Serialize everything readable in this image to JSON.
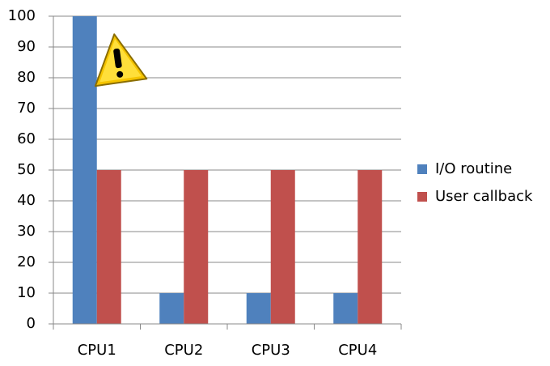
{
  "chart_data": {
    "type": "bar",
    "categories": [
      "CPU1",
      "CPU2",
      "CPU3",
      "CPU4"
    ],
    "series": [
      {
        "name": "I/O routine",
        "color": "#4f81bd",
        "values": [
          100,
          10,
          10,
          10
        ]
      },
      {
        "name": "User callback",
        "color": "#c0504d",
        "values": [
          50,
          50,
          50,
          50
        ]
      }
    ],
    "ylim": [
      0,
      100
    ],
    "yticks": [
      0,
      10,
      20,
      30,
      40,
      50,
      60,
      70,
      80,
      90,
      100
    ],
    "grid": true,
    "legend": "right"
  }
}
